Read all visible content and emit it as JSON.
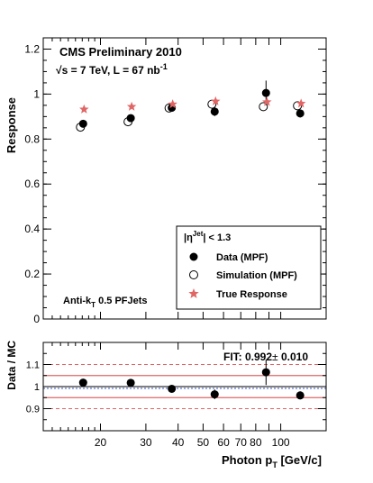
{
  "chart_data": [
    {
      "type": "scatter",
      "panel": "upper",
      "ylabel": "Response",
      "xscale": "log",
      "xlim": [
        12,
        150
      ],
      "ylim": [
        0,
        1.25
      ],
      "yticks": [
        0,
        0.2,
        0.4,
        0.6,
        0.8,
        1,
        1.2
      ],
      "ytick_labels": [
        "0",
        "0.2",
        "0.4",
        "0.6",
        "0.8",
        "1",
        "1.2"
      ],
      "annotations": {
        "experiment": "CMS Preliminary 2010",
        "energy": "√s = 7 TeV, L = 67 nb",
        "energy_sup": "-1",
        "algo": "Anti-k",
        "algo_sub": "T",
        "algo_rest": " 0.5 PFJets"
      },
      "legend": {
        "placement": "bottom-right",
        "header": "|η",
        "header_sup": "Jet",
        "header_rest": "| < 1.3",
        "entries": [
          "Data (MPF)",
          "Simulation (MPF)",
          "True Response"
        ]
      },
      "x": [
        17,
        26,
        37.5,
        55,
        87,
        118
      ],
      "series": [
        {
          "name": "Data (MPF)",
          "marker": "filled-circle",
          "color": "#000000",
          "values": [
            0.868,
            0.893,
            0.939,
            0.922,
            1.005,
            0.914
          ],
          "errors": [
            0.01,
            0.01,
            0.012,
            0.02,
            0.055,
            0.018
          ]
        },
        {
          "name": "Simulation (MPF)",
          "marker": "open-circle",
          "color": "#000000",
          "values": [
            0.853,
            0.877,
            0.938,
            0.955,
            0.944,
            0.948
          ],
          "errors": [
            0.005,
            0.005,
            0.005,
            0.006,
            0.008,
            0.007
          ]
        },
        {
          "name": "True Response",
          "marker": "star",
          "color": "#e06666",
          "values": [
            0.932,
            0.944,
            0.955,
            0.968,
            0.965,
            0.958
          ]
        }
      ]
    },
    {
      "type": "scatter",
      "panel": "lower",
      "ylabel": "Data / MC",
      "xlabel": "Photon p",
      "xlabel_sub": "T",
      "xlabel_rest": " [GeV/c]",
      "xscale": "log",
      "xlim": [
        12,
        150
      ],
      "ylim": [
        0.8,
        1.2
      ],
      "yticks": [
        0.9,
        1,
        1.1
      ],
      "ytick_labels": [
        "0.9",
        "1",
        "1.1"
      ],
      "xticks": [
        20,
        30,
        40,
        50,
        60,
        70,
        80,
        90,
        100
      ],
      "xtick_labels": [
        "20",
        "30",
        "40",
        "50",
        "60",
        "70",
        "80",
        "",
        "100"
      ],
      "fit_label": "FIT: 0.992",
      "fit_label_pm": "±",
      "fit_label_err": " 0.010",
      "fit": {
        "value": 0.992,
        "error": 0.01
      },
      "reference_lines": [
        1.0,
        0.95,
        1.05,
        0.9,
        1.1
      ],
      "x": [
        17,
        26,
        37.5,
        55,
        87,
        118
      ],
      "series": [
        {
          "name": "",
          "marker": "filled-circle",
          "color": "#000000",
          "values": [
            1.018,
            1.017,
            0.99,
            0.965,
            1.065,
            0.96
          ],
          "errors": [
            0.01,
            0.01,
            0.012,
            0.022,
            0.058,
            0.018
          ]
        }
      ]
    }
  ]
}
